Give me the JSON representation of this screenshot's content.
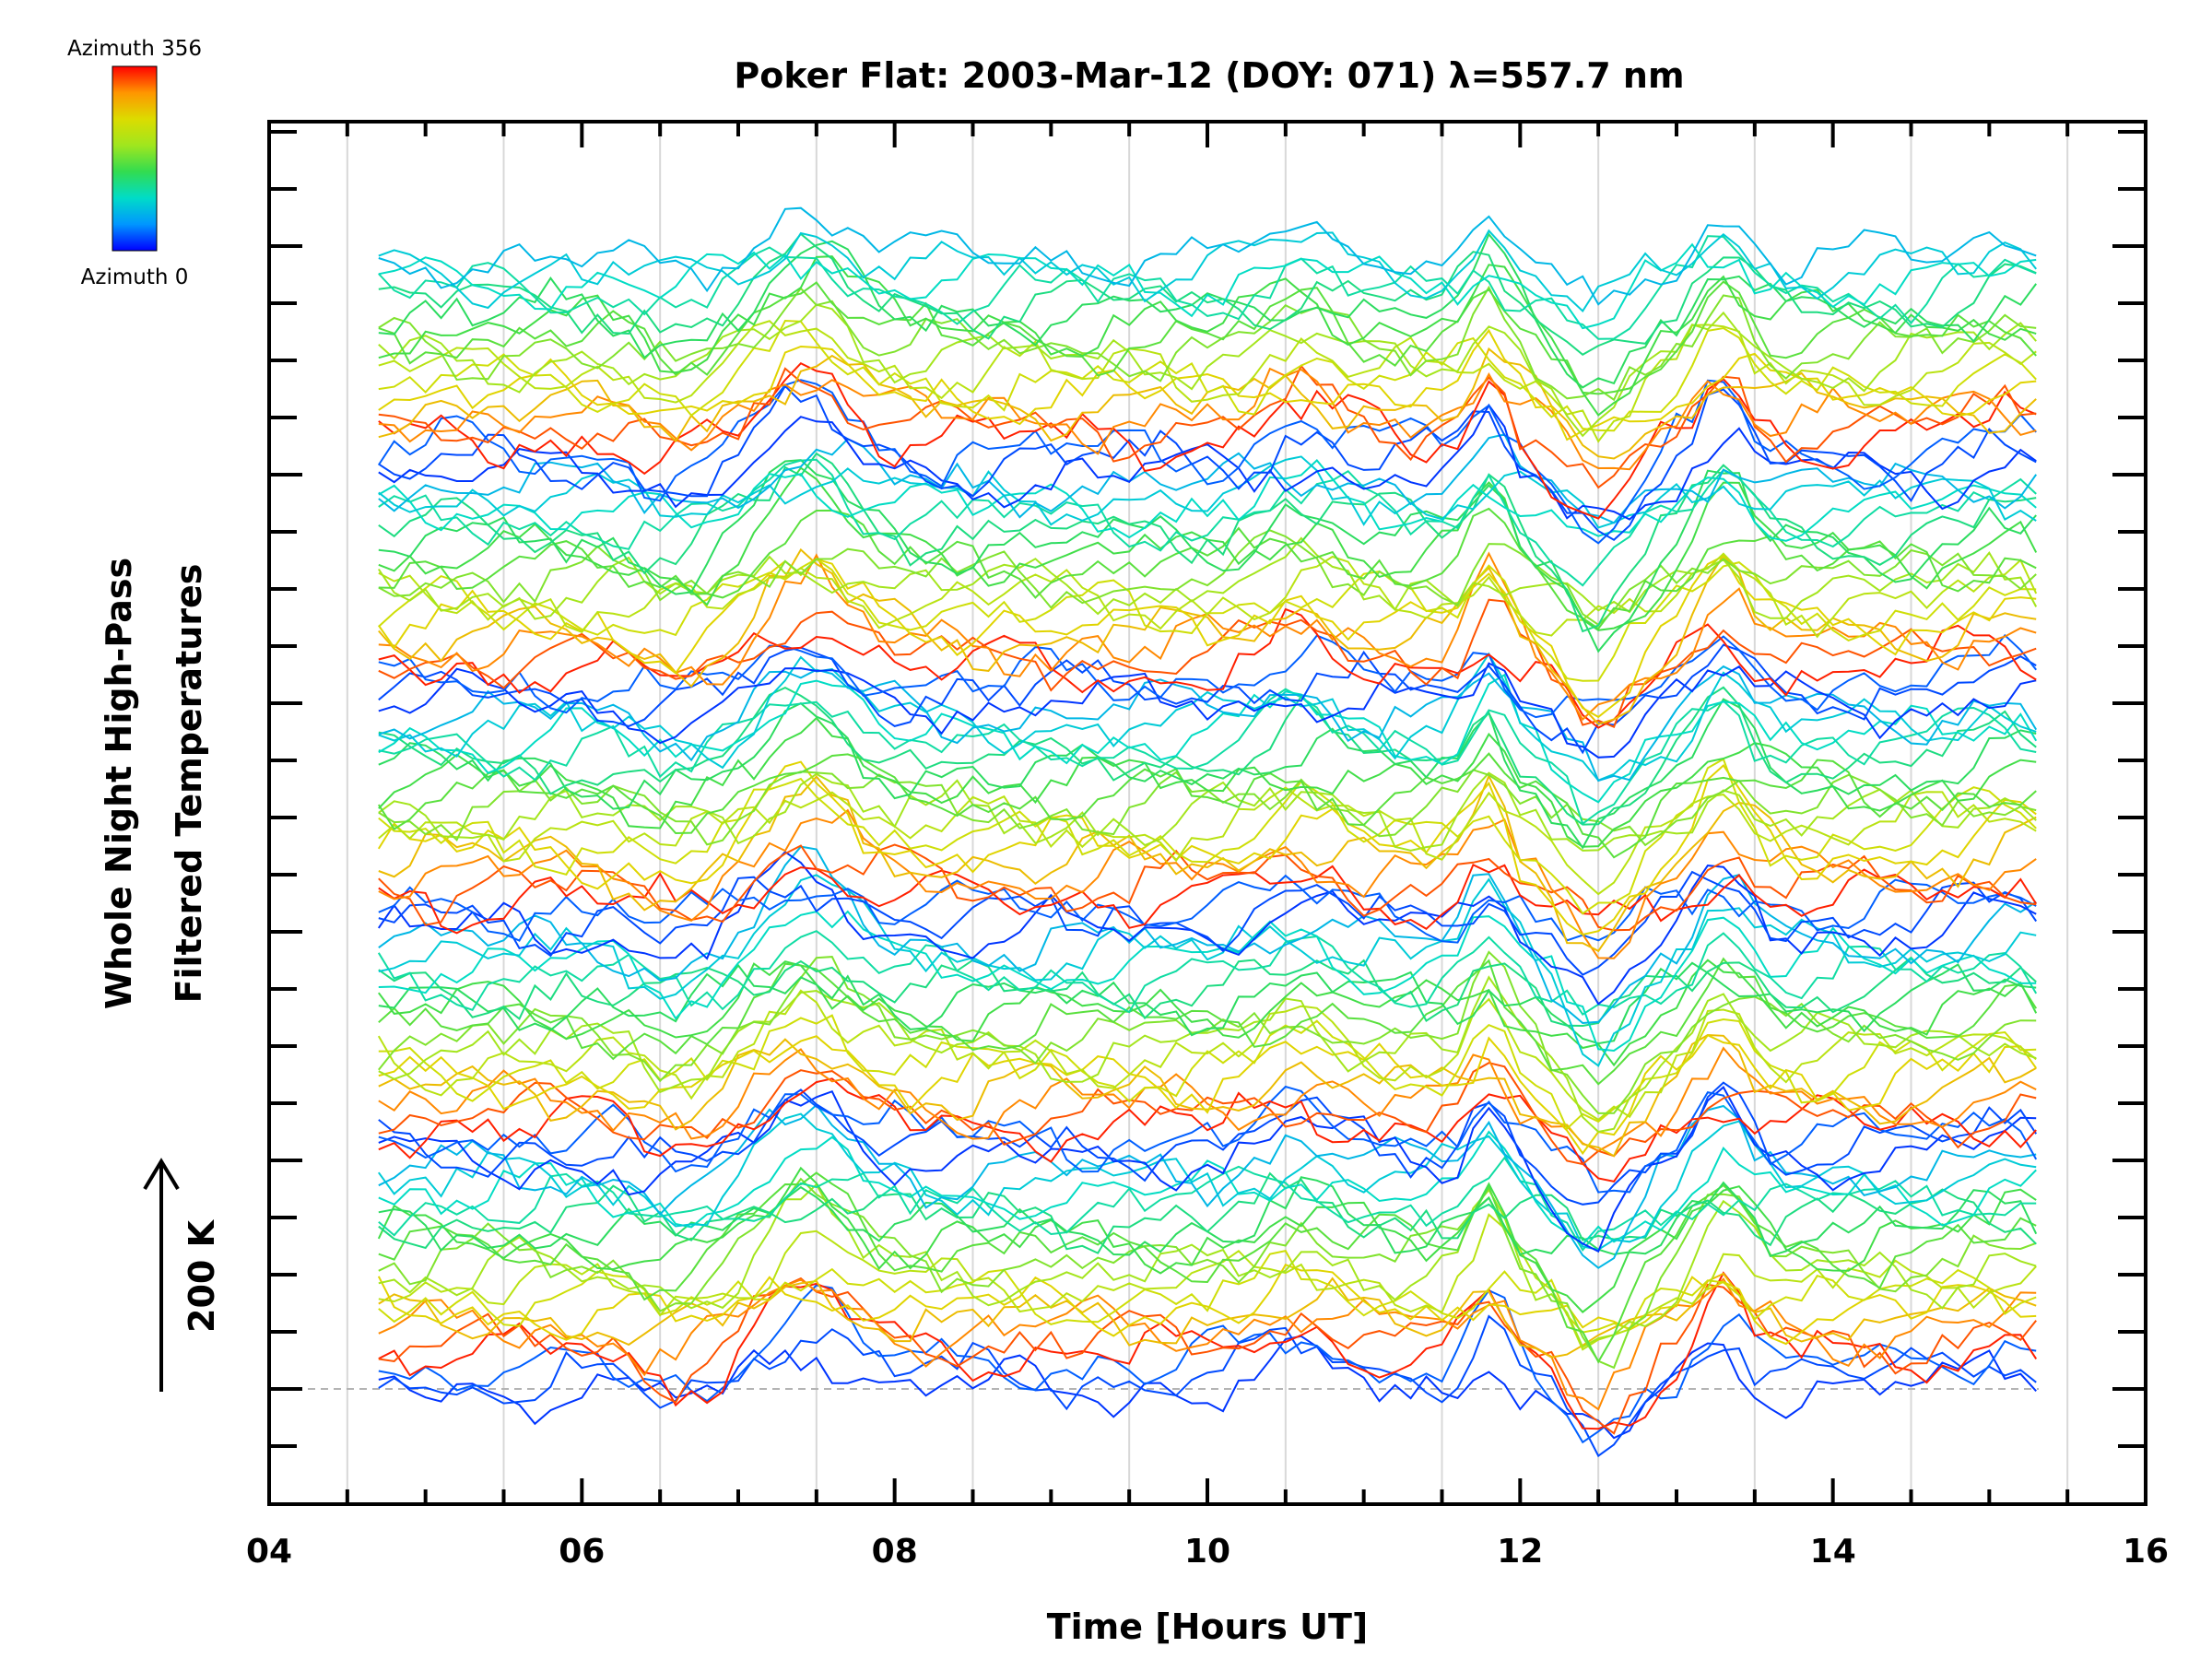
{
  "chart_data": {
    "type": "line",
    "title": "Poker Flat: 2003-Mar-12 (DOY: 071) λ=557.7 nm",
    "xlabel": "Time [Hours UT]",
    "ylabel_line1": "Whole Night High-Pass",
    "ylabel_line2": "Filtered Temperatures",
    "scale_label": "200 K",
    "xlim": [
      4,
      16
    ],
    "xticks": [
      "04",
      "06",
      "08",
      "10",
      "12",
      "14",
      "16"
    ],
    "x_start": 4.7,
    "x_end": 15.3,
    "x_step": 0.1,
    "colorbar": {
      "top_label": "Azimuth 356",
      "bottom_label": "Azimuth 0"
    },
    "colormap": [
      "#0000ff",
      "#0096ff",
      "#00dcc8",
      "#32dc50",
      "#a0e61e",
      "#dcdc00",
      "#ff9600",
      "#ff0000"
    ],
    "grid": "vertical",
    "stack": {
      "groups": 5,
      "traces_per_group": 20,
      "azimuth_max": 356,
      "baseline_offset": 0,
      "group_spacing": 200
    },
    "dominant_features": [
      {
        "t": 7.45,
        "amplitude": 60,
        "width": 0.35
      },
      {
        "t": 10.6,
        "amplitude": 30,
        "width": 0.3
      },
      {
        "t": 11.8,
        "amplitude": 55,
        "width": 0.15
      },
      {
        "t": 12.5,
        "amplitude": -70,
        "width": 0.3
      },
      {
        "t": 13.3,
        "amplitude": 55,
        "width": 0.2
      },
      {
        "t": 6.6,
        "amplitude": -25,
        "width": 0.3
      },
      {
        "t": 15.1,
        "amplitude": 20,
        "width": 0.3
      }
    ]
  }
}
